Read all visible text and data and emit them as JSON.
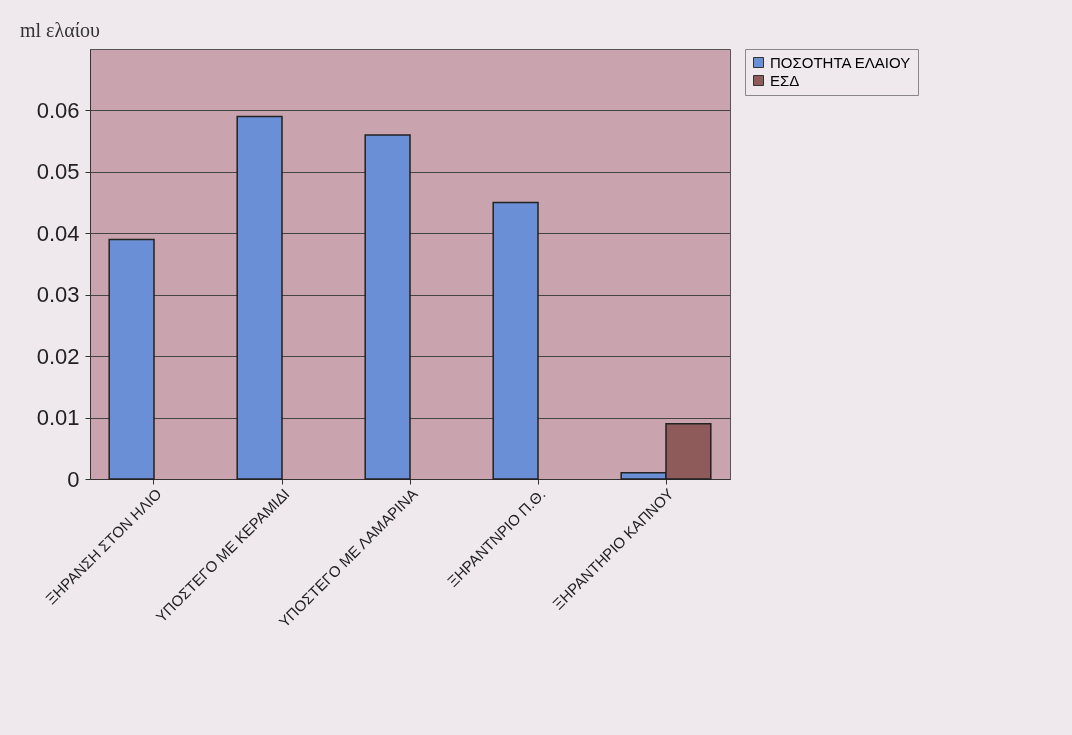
{
  "chart_data": {
    "type": "bar",
    "ylabel": "ml ελαίου",
    "categories": [
      "ΞΗΡΑΝΣΗ ΣΤΟΝ ΗΛΙΟ",
      "ΥΠΟΣΤΕΓΟ ΜΕ ΚΕΡΑΜΙΔΙ",
      "ΥΠΟΣΤΕΓΟ ΜΕ ΛΑΜΑΡΙΝΑ",
      "ΞΗΡΑΝΤΝΡΙΟ Π.Θ.",
      "ΞΗΡΑΝΤΗΡΙΟ ΚΑΠΝΟΥ"
    ],
    "series": [
      {
        "name": "ΠΟΣΟΤΗΤΑ ΕΛΑΙΟΥ",
        "color": "#6b8fd6",
        "values": [
          0.039,
          0.059,
          0.056,
          0.045,
          0.001
        ]
      },
      {
        "name": "ΕΣΔ",
        "color": "#8e5a5a",
        "values": [
          null,
          null,
          null,
          null,
          0.009
        ]
      }
    ],
    "ylim": [
      0,
      0.07
    ],
    "yticks": [
      0,
      0.01,
      0.02,
      0.03,
      0.04,
      0.05,
      0.06
    ],
    "grid": "y",
    "legend": "right"
  }
}
